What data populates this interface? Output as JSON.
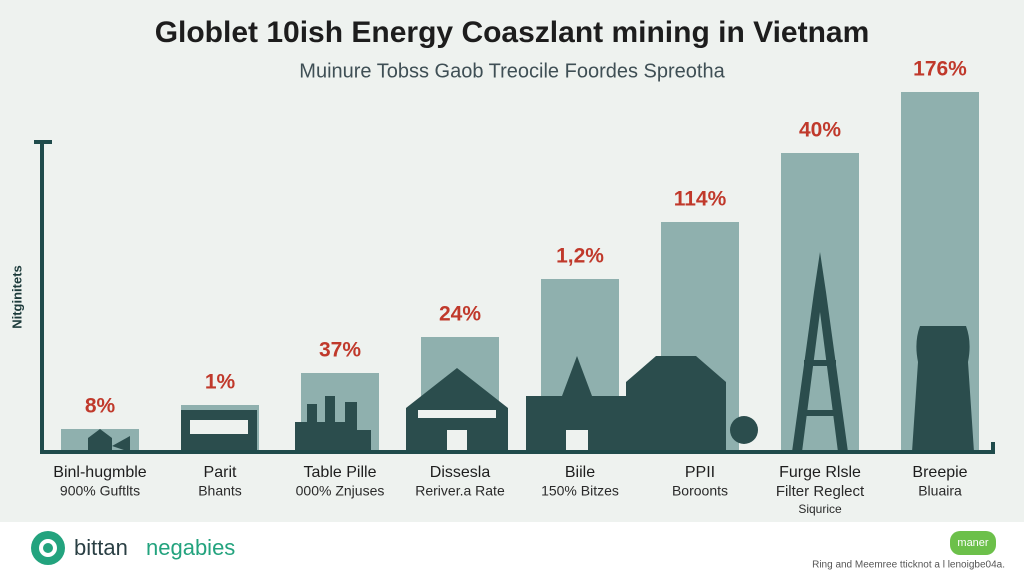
{
  "chart_data": {
    "type": "bar",
    "title": "Globlet 10ish Energy Coaszlant mining in Vietnam",
    "subtitle": "Muinure Tobss Gaob Treocile Foordes Spreotha",
    "y_label": "Nitginitets",
    "categories": [
      "Binl-hugmble",
      "Parit",
      "Table Pille",
      "Dissesla",
      "Biile",
      "PPII",
      "Furge Rlsle",
      "Breepie"
    ],
    "sublabels": [
      [
        "900% Guftlts"
      ],
      [
        "Bhants"
      ],
      [
        "000% Znjuses"
      ],
      [
        "Reriver.a Rate"
      ],
      [
        "150% Bitzes"
      ],
      [
        "Boroonts"
      ],
      [
        "Filter Reglect",
        "Siqurice"
      ],
      [
        "Bluaira"
      ]
    ],
    "values": [
      23,
      47,
      79,
      115,
      173,
      230,
      299,
      360
    ],
    "annotations": [
      "8%",
      "1%",
      "37%",
      "24%",
      "1,2%",
      "114%",
      "40%",
      "176%"
    ],
    "color": "#8fb0ae",
    "annotation_color": "#c0392b"
  },
  "footer": {
    "brand_1": "bittan",
    "brand_2": "negabies",
    "badge": "maner",
    "note": "Ring and Meemree tticknot a l lenoigbe04a."
  }
}
